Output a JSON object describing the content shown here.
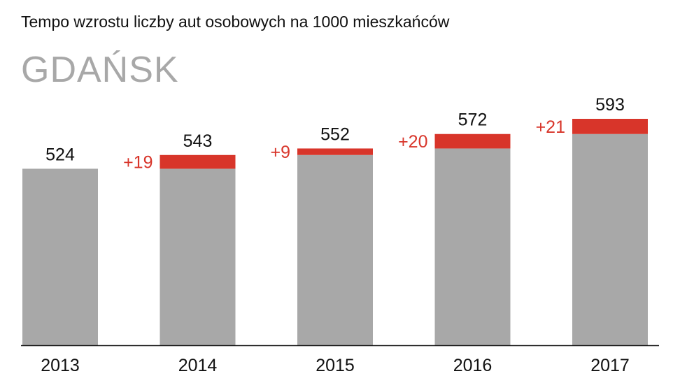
{
  "title": "Tempo wzrostu liczby aut osobowych na 1000 mieszkańców",
  "subtitle": "GDAŃSK",
  "colors": {
    "base": "#a8a8a8",
    "increase": "#d8352a",
    "text": "#111111",
    "axis": "#111111"
  },
  "chart_data": {
    "type": "bar",
    "categories": [
      "2013",
      "2014",
      "2015",
      "2016",
      "2017"
    ],
    "values": [
      524,
      543,
      552,
      572,
      593
    ],
    "increases": [
      null,
      "+19",
      "+9",
      "+20",
      "+21"
    ],
    "increase_values": [
      0,
      19,
      9,
      20,
      21
    ],
    "value_labels": [
      "524",
      "543",
      "552",
      "572",
      "593"
    ],
    "grid": false,
    "legend": "none"
  }
}
